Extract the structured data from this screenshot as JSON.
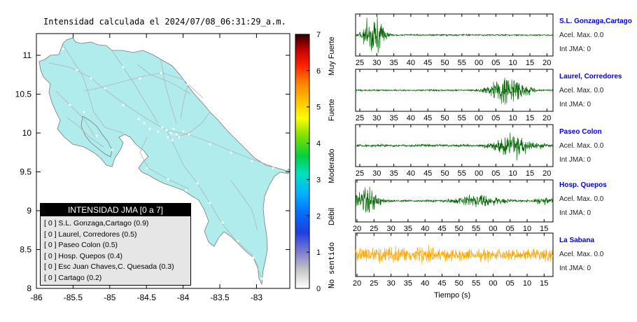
{
  "map": {
    "title": "Intensidad calculada el 2024/07/08_06:31:29_a.m.",
    "x_ticks": [
      "-86",
      "-85.5",
      "-85",
      "-84.5",
      "-84",
      "-83.5",
      "-83"
    ],
    "y_ticks": [
      "11",
      "10.5",
      "10",
      "9.5",
      "9",
      "8.5",
      "8"
    ],
    "land_color": "#b0ecec",
    "road_color": "#b3b3b3"
  },
  "colorbar": {
    "ticks": [
      "0",
      "1",
      "2",
      "3",
      "4",
      "5",
      "6",
      "7"
    ],
    "labels": [
      "No sentido",
      "Débil",
      "Moderado",
      "Fuerte",
      "Muy Fuerte"
    ]
  },
  "legend": {
    "title": "INTENSIDAD JMA [0 a 7]",
    "rows": [
      "[ 0 ]  S.L. Gonzaga,Cartago (0.9)",
      "[ 0 ]  Laurel, Corredores (0.5)",
      "[ 0 ]  Paseo Colon (0.5)",
      "[ 0 ]  Hosp. Quepos (0.4)",
      "[ 0 ]  Esc Juan Chaves,C. Quesada (0.3)",
      "[ 0 ]  Cartago (0.2)"
    ]
  },
  "waveforms": {
    "time_label": "Tiempo (s)",
    "stations": [
      {
        "name": "S.L. Gonzaga,Cartago",
        "acel": "Acel. Max. 0.0",
        "jma": "Int JMA: 0",
        "color": "#006400",
        "ticks": [
          "25",
          "30",
          "35",
          "40",
          "45",
          "50",
          "55",
          "00",
          "05",
          "10",
          "15",
          "20"
        ]
      },
      {
        "name": "Laurel, Corredores",
        "acel": "Acel. Max. 0.0",
        "jma": "Int JMA: 0",
        "color": "#006400",
        "ticks": [
          "25",
          "30",
          "35",
          "40",
          "45",
          "50",
          "55",
          "00",
          "05",
          "10",
          "15",
          "20"
        ]
      },
      {
        "name": "Paseo Colon",
        "acel": "Acel. Max. 0.0",
        "jma": "Int JMA: 0",
        "color": "#006400",
        "ticks": [
          "25",
          "30",
          "35",
          "40",
          "45",
          "50",
          "55",
          "00",
          "05",
          "10",
          "15",
          "20"
        ]
      },
      {
        "name": "Hosp. Quepos",
        "acel": "Acel. Max. 0.0",
        "jma": "Int JMA: 0",
        "color": "#006400",
        "ticks": [
          "20",
          "25",
          "30",
          "35",
          "40",
          "45",
          "50",
          "55",
          "00",
          "05",
          "10",
          "15"
        ]
      },
      {
        "name": "La Sabana",
        "acel": "Acel. Max. 0.0",
        "jma": "Int JMA: 0",
        "color": "#ffa500",
        "ticks": [
          "20",
          "25",
          "30",
          "35",
          "40",
          "45",
          "50",
          "55",
          "00",
          "05",
          "10",
          "15"
        ]
      }
    ]
  },
  "chart_data": [
    {
      "type": "scatter",
      "title": "Intensidad calculada el 2024/07/08_06:31:29_a.m.",
      "xlabel": "",
      "ylabel": "",
      "xlim": [
        -86,
        -82.5
      ],
      "ylim": [
        8,
        11.3
      ],
      "x_ticks": [
        -86,
        -85.5,
        -85,
        -84.5,
        -84,
        -83.5,
        -83
      ],
      "y_ticks": [
        8,
        8.5,
        9,
        9.5,
        10,
        10.5,
        11
      ],
      "colorbar": {
        "range": [
          0,
          7
        ],
        "ticks": [
          0,
          1,
          2,
          3,
          4,
          5,
          6,
          7
        ],
        "categories": [
          "No sentido",
          "Débil",
          "Moderado",
          "Fuerte",
          "Muy Fuerte"
        ]
      },
      "legend_title": "INTENSIDAD JMA [0 a 7]",
      "stations": [
        {
          "name": "S.L. Gonzaga,Cartago",
          "jma": 0,
          "value": 0.9
        },
        {
          "name": "Laurel, Corredores",
          "jma": 0,
          "value": 0.5
        },
        {
          "name": "Paseo Colon",
          "jma": 0,
          "value": 0.5
        },
        {
          "name": "Hosp. Quepos",
          "jma": 0,
          "value": 0.4
        },
        {
          "name": "Esc Juan Chaves,C. Quesada",
          "jma": 0,
          "value": 0.3
        },
        {
          "name": "Cartago",
          "jma": 0,
          "value": 0.2
        }
      ]
    },
    {
      "type": "line",
      "xlabel": "Tiempo (s)",
      "series": [
        {
          "name": "S.L. Gonzaga,Cartago",
          "acel_max": 0.0,
          "int_jma": 0
        },
        {
          "name": "Laurel, Corredores",
          "acel_max": 0.0,
          "int_jma": 0
        },
        {
          "name": "Paseo Colon",
          "acel_max": 0.0,
          "int_jma": 0
        },
        {
          "name": "Hosp. Quepos",
          "acel_max": 0.0,
          "int_jma": 0
        },
        {
          "name": "La Sabana",
          "acel_max": 0.0,
          "int_jma": 0
        }
      ]
    }
  ]
}
